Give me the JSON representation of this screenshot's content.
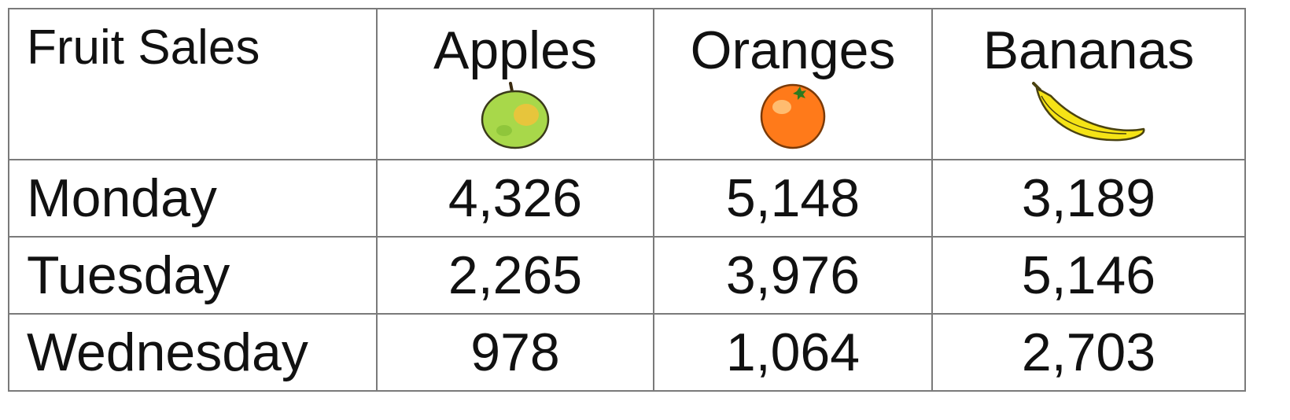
{
  "chart_data": {
    "type": "table",
    "title": "Fruit Sales",
    "columns": [
      "Apples",
      "Oranges",
      "Bananas"
    ],
    "column_icons": [
      "apple-icon",
      "orange-icon",
      "banana-icon"
    ],
    "rows": [
      {
        "label": "Monday",
        "values": [
          "4,326",
          "5,148",
          "3,189"
        ]
      },
      {
        "label": "Tuesday",
        "values": [
          "2,265",
          "3,976",
          "5,146"
        ]
      },
      {
        "label": "Wednesday",
        "values": [
          "978",
          "1,064",
          "2,703"
        ]
      }
    ]
  },
  "colors": {
    "border": "#7a7a7a",
    "text": "#111111",
    "apple": "#a8d84a",
    "orange": "#ff7a1a",
    "banana": "#f5e316"
  }
}
